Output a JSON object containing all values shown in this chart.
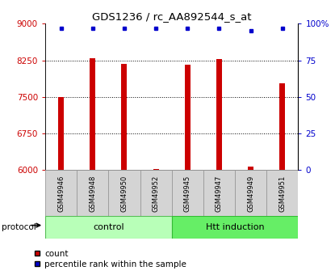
{
  "title": "GDS1236 / rc_AA892544_s_at",
  "samples": [
    "GSM49946",
    "GSM49948",
    "GSM49950",
    "GSM49952",
    "GSM49945",
    "GSM49947",
    "GSM49949",
    "GSM49951"
  ],
  "counts": [
    7500,
    8300,
    8180,
    6030,
    8160,
    8270,
    6070,
    7780
  ],
  "percentile_ranks": [
    97,
    97,
    97,
    97,
    97,
    97,
    95,
    97
  ],
  "groups": [
    "control",
    "control",
    "control",
    "control",
    "Htt induction",
    "Htt induction",
    "Htt induction",
    "Htt induction"
  ],
  "control_color": "#b8ffb8",
  "htt_color": "#66ee66",
  "bar_color": "#cc0000",
  "dot_color": "#0000cc",
  "ylim_left": [
    6000,
    9000
  ],
  "ylim_right": [
    0,
    100
  ],
  "yticks_left": [
    6000,
    6750,
    7500,
    8250,
    9000
  ],
  "yticks_right": [
    0,
    25,
    50,
    75,
    100
  ],
  "left_tick_color": "#cc0000",
  "right_tick_color": "#0000cc",
  "bg_color": "#ffffff",
  "grid_color": "#000000",
  "protocol_label": "protocol",
  "legend_count_label": "count",
  "legend_percentile_label": "percentile rank within the sample",
  "title_fontsize": 9.5,
  "tick_fontsize": 7.5,
  "sample_fontsize": 6,
  "legend_fontsize": 7.5
}
